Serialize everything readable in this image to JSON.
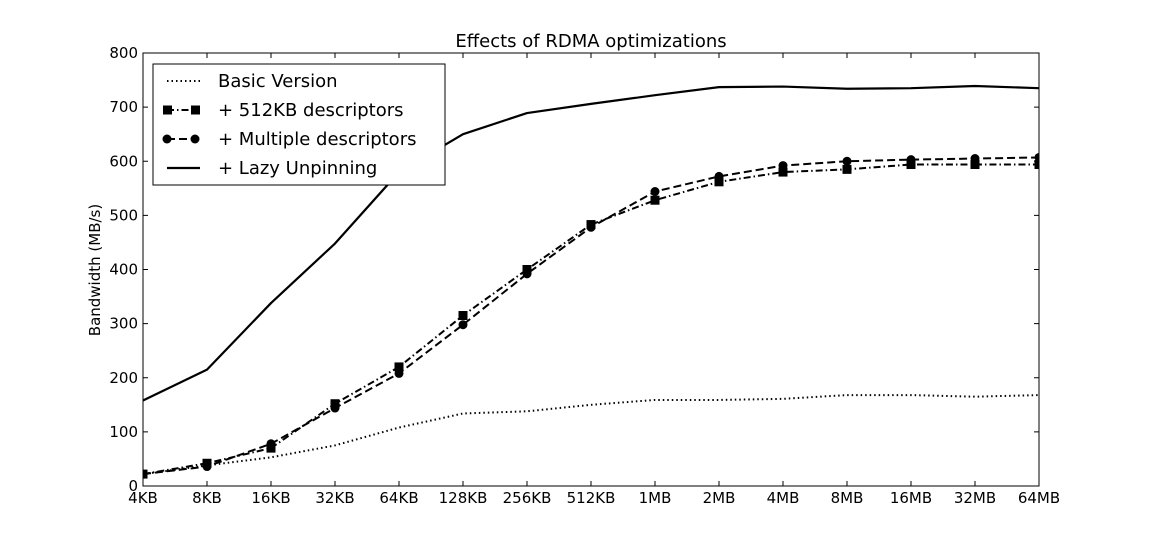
{
  "chart_data": {
    "type": "line",
    "title": "Effects of RDMA optimizations",
    "xlabel": "",
    "ylabel": "Bandwidth (MB/s)",
    "ylim": [
      0,
      800
    ],
    "yticks": [
      0,
      100,
      200,
      300,
      400,
      500,
      600,
      700,
      800
    ],
    "grid": false,
    "legend_position": "top-left",
    "categories": [
      "4KB",
      "8KB",
      "16KB",
      "32KB",
      "64KB",
      "128KB",
      "256KB",
      "512KB",
      "1MB",
      "2MB",
      "4MB",
      "8MB",
      "16MB",
      "32MB",
      "64MB"
    ],
    "series": [
      {
        "name": "Basic Version",
        "style": "dotted",
        "marker": "none",
        "color": "#000000",
        "values": [
          22,
          38,
          53,
          75,
          108,
          134,
          138,
          150,
          159,
          159,
          161,
          168,
          168,
          165,
          168
        ]
      },
      {
        "name": "+ 512KB descriptors",
        "style": "dashdot",
        "marker": "square",
        "color": "#000000",
        "values": [
          22,
          42,
          70,
          152,
          220,
          315,
          400,
          483,
          528,
          562,
          580,
          585,
          594,
          594,
          594
        ]
      },
      {
        "name": "+ Multiple descriptors",
        "style": "dashed",
        "marker": "circle",
        "color": "#000000",
        "values": [
          22,
          36,
          78,
          144,
          208,
          298,
          392,
          478,
          544,
          572,
          592,
          600,
          603,
          605,
          607
        ]
      },
      {
        "name": "+ Lazy Unpinning",
        "style": "solid",
        "marker": "none",
        "color": "#000000",
        "values": [
          158,
          215,
          338,
          448,
          580,
          650,
          689,
          706,
          722,
          737,
          738,
          734,
          735,
          739,
          735
        ]
      }
    ]
  }
}
